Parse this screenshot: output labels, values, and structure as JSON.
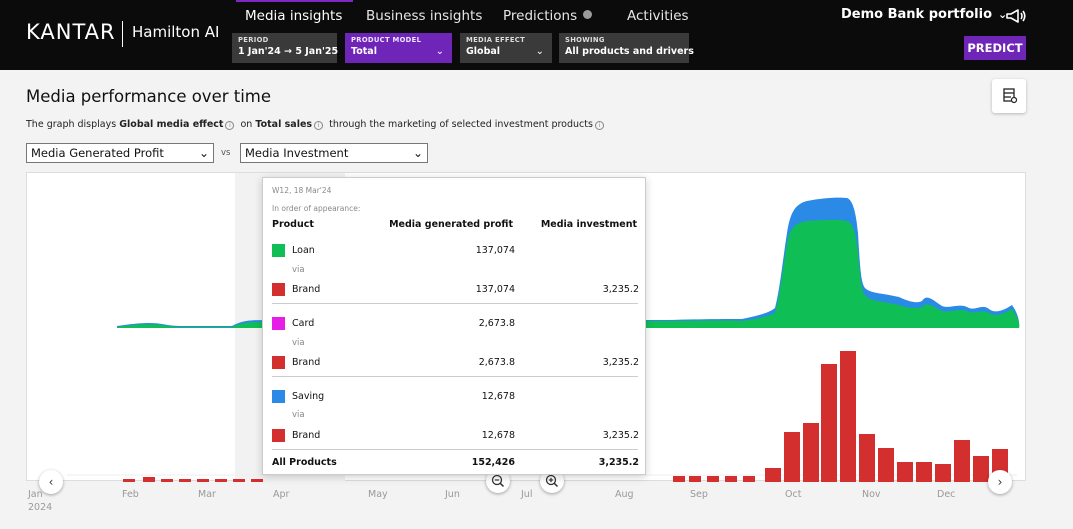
{
  "brand": {
    "logo": "KANTAR",
    "product": "Hamilton AI"
  },
  "tabs": [
    {
      "label": "Media insights"
    },
    {
      "label": "Business insights"
    },
    {
      "label": "Predictions"
    },
    {
      "label": "Activities"
    }
  ],
  "filters": {
    "period": {
      "label": "PERIOD",
      "value": "1 Jan'24 → 5 Jan'25"
    },
    "product_model": {
      "label": "PRODUCT MODEL",
      "value": "Total"
    },
    "media_effect": {
      "label": "MEDIA EFFECT",
      "value": "Global"
    },
    "showing": {
      "label": "SHOWING",
      "value": "All products and drivers"
    }
  },
  "portfolio": "Demo Bank portfolio",
  "predict_label": "PREDICT",
  "page": {
    "title": "Media performance over time",
    "desc_pre": "The graph displays",
    "desc_effect": "Global media effect",
    "desc_on": "on",
    "desc_metric": "Total sales",
    "desc_post": "through the marketing of selected investment products"
  },
  "selects": {
    "left": "Media Generated Profit",
    "vs": "vs",
    "right": "Media Investment"
  },
  "months": [
    "Jan",
    "Feb",
    "Mar",
    "Apr",
    "May",
    "Jun",
    "Jul",
    "Aug",
    "Sep",
    "Oct",
    "Nov",
    "Dec"
  ],
  "year": "2024",
  "colors": {
    "loan": "#0fbf55",
    "card": "#e61ee6",
    "saving": "#2b8ae6",
    "brand": "#d32f2f",
    "accent": "#6f25b7"
  },
  "tooltip": {
    "week": "W12, 18 Mar'24",
    "order": "In order of appearance:",
    "headers": {
      "product": "Product",
      "profit": "Media generated profit",
      "investment": "Media investment"
    },
    "via": "via",
    "groups": [
      {
        "product": "Loan",
        "product_profit": "137,074",
        "driver": "Brand",
        "driver_profit": "137,074",
        "driver_investment": "3,235.2"
      },
      {
        "product": "Card",
        "product_profit": "2,673.8",
        "driver": "Brand",
        "driver_profit": "2,673.8",
        "driver_investment": "3,235.2"
      },
      {
        "product": "Saving",
        "product_profit": "12,678",
        "driver": "Brand",
        "driver_profit": "12,678",
        "driver_investment": "3,235.2"
      }
    ],
    "total": {
      "label": "All Products",
      "profit": "152,426",
      "investment": "3,235.2"
    }
  }
}
